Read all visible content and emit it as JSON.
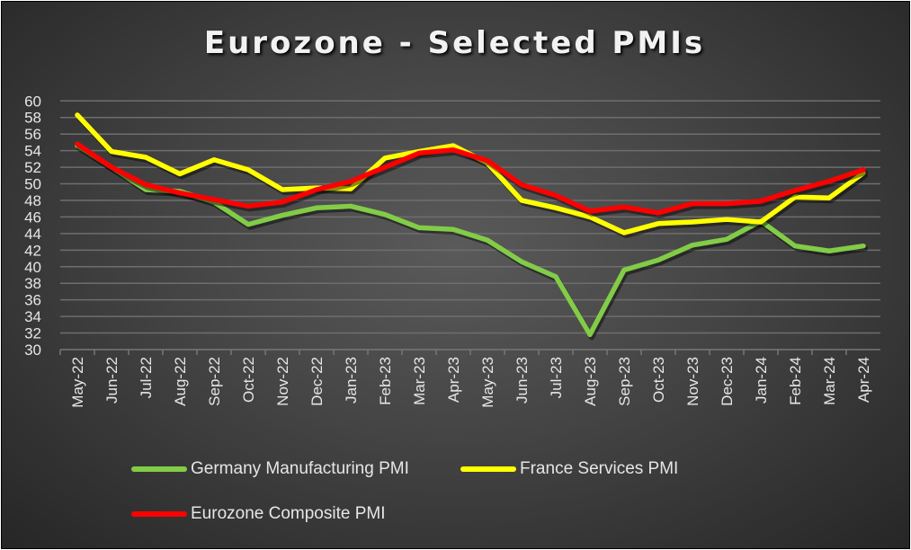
{
  "chart_data": {
    "type": "line",
    "title": "Eurozone - Selected PMIs",
    "xlabel": "",
    "ylabel": "",
    "ylim": [
      30,
      60
    ],
    "yticks": [
      30,
      32,
      34,
      36,
      38,
      40,
      42,
      44,
      46,
      48,
      50,
      52,
      54,
      56,
      58,
      60
    ],
    "grid": true,
    "legend_position": "bottom",
    "categories": [
      "May-22",
      "Jun-22",
      "Jul-22",
      "Aug-22",
      "Sep-22",
      "Oct-22",
      "Nov-22",
      "Dec-22",
      "Jan-23",
      "Feb-23",
      "Mar-23",
      "Apr-23",
      "May-23",
      "Jun-23",
      "Jul-23",
      "Aug-23",
      "Sep-23",
      "Oct-23",
      "Nov-23",
      "Dec-23",
      "Jan-24",
      "Feb-24",
      "Mar-24",
      "Apr-24"
    ],
    "series": [
      {
        "name": "Germany Manufacturing PMI",
        "color": "#82cc47",
        "values": [
          54.6,
          52.0,
          49.3,
          49.1,
          47.8,
          45.1,
          46.2,
          47.1,
          47.3,
          46.3,
          44.7,
          44.5,
          43.2,
          40.6,
          38.8,
          31.8,
          39.6,
          40.8,
          42.6,
          43.3,
          45.5,
          42.5,
          41.9,
          42.5
        ]
      },
      {
        "name": "France Services PMI",
        "color": "#ffff00",
        "values": [
          58.3,
          53.9,
          53.2,
          51.2,
          52.9,
          51.7,
          49.3,
          49.5,
          49.4,
          53.1,
          53.9,
          54.6,
          52.5,
          48.0,
          47.1,
          46.0,
          44.1,
          45.2,
          45.4,
          45.7,
          45.4,
          48.4,
          48.3,
          51.3
        ]
      },
      {
        "name": "Eurozone Composite PMI",
        "color": "#ff0000",
        "values": [
          54.8,
          52.0,
          49.9,
          48.9,
          48.1,
          47.3,
          47.8,
          49.3,
          50.3,
          52.0,
          53.7,
          54.1,
          52.8,
          49.9,
          48.6,
          46.7,
          47.2,
          46.5,
          47.6,
          47.6,
          47.9,
          49.2,
          50.3,
          51.7
        ]
      }
    ]
  }
}
